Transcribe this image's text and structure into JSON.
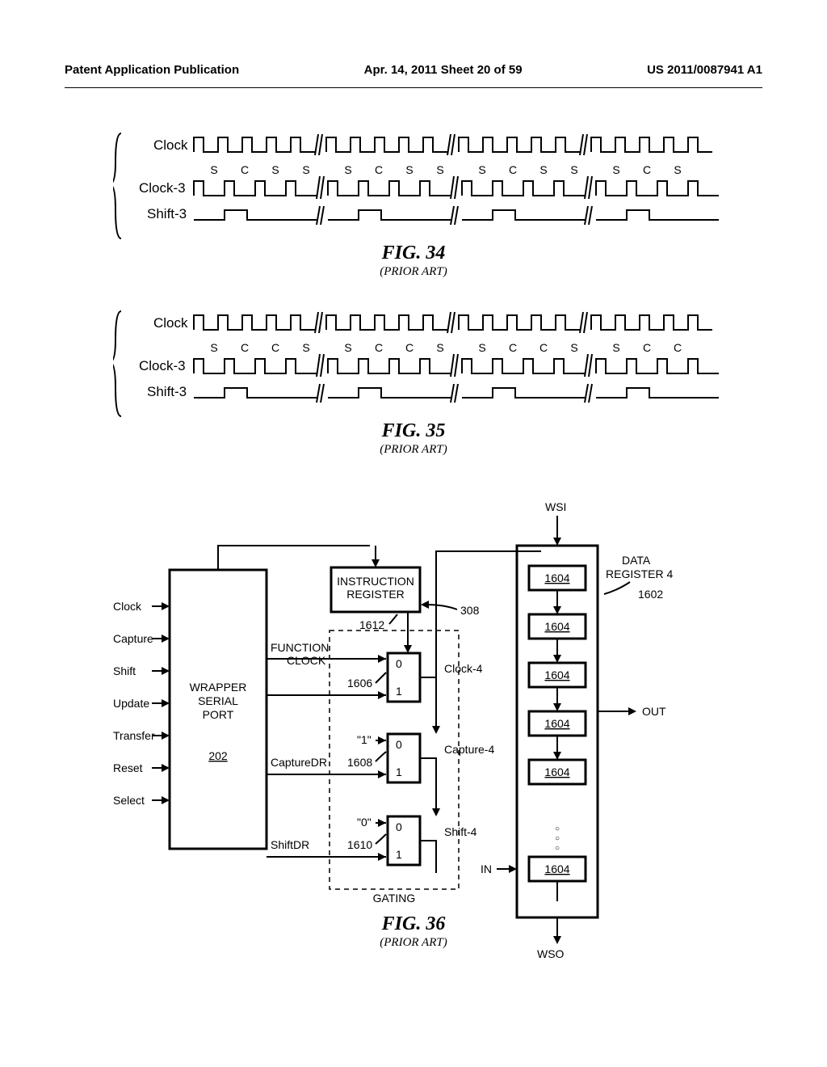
{
  "header": {
    "left": "Patent Application Publication",
    "center": "Apr. 14, 2011  Sheet 20 of 59",
    "right": "US 2011/0087941 A1"
  },
  "fig34": {
    "bracket_signals": [
      "Clock",
      "Clock-3",
      "Shift-3"
    ],
    "sc_sequence": [
      "S",
      "C",
      "S",
      "S",
      "S",
      "C",
      "S",
      "S",
      "S",
      "C",
      "S",
      "S",
      "S",
      "C",
      "S"
    ],
    "caption": "FIG. 34",
    "subcaption": "(PRIOR ART)",
    "waveform_stroke": "#000000",
    "background": "#ffffff"
  },
  "fig35": {
    "bracket_signals": [
      "Clock",
      "Clock-3",
      "Shift-3"
    ],
    "sc_sequence": [
      "S",
      "C",
      "C",
      "S",
      "S",
      "C",
      "C",
      "S",
      "S",
      "C",
      "C",
      "S",
      "S",
      "C",
      "C"
    ],
    "caption": "FIG. 35",
    "subcaption": "(PRIOR ART)",
    "waveform_stroke": "#000000"
  },
  "fig36": {
    "caption": "FIG. 36",
    "subcaption": "(PRIOR ART)",
    "wsp_label": "WRAPPER\nSERIAL\nPORT",
    "wsp_ref": "202",
    "wsp_inputs": [
      "Clock",
      "Capture",
      "Shift",
      "Update",
      "Transfer",
      "Reset",
      "Select"
    ],
    "wsp_outputs": {
      "func_clock": "FUNCTION\nCLOCK",
      "capture_dr": "CaptureDR",
      "shift_dr": "ShiftDR"
    },
    "instr_reg_label": "INSTRUCTION\nREGISTER",
    "instr_reg_ref": "1612",
    "instr_reg_pointer": "308",
    "gating_label": "GATING",
    "mux_refs": [
      "1606",
      "1608",
      "1610"
    ],
    "mux_inputs_0": [
      "0",
      "1"
    ],
    "mux_bus_labels": {
      "clock4": "Clock-4",
      "capture4": "Capture-4",
      "shift4": "Shift-4"
    },
    "mux_constants": {
      "one": "\"1\"",
      "zero": "\"0\""
    },
    "dr_label": "DATA\nREGISTER 4",
    "dr_ref": "1602",
    "cell_ref": "1604",
    "cell_count": 6,
    "wsi": "WSI",
    "wso": "WSO",
    "in_label": "IN",
    "out_label": "OUT",
    "colors": {
      "stroke": "#000000",
      "background": "#ffffff"
    }
  }
}
